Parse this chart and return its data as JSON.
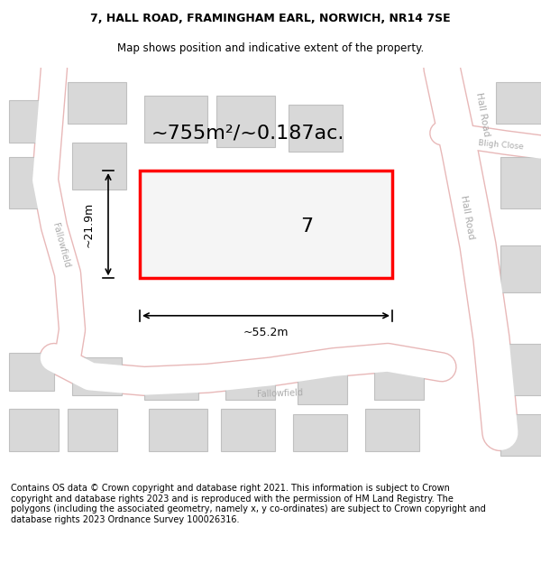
{
  "title_line1": "7, HALL ROAD, FRAMINGHAM EARL, NORWICH, NR14 7SE",
  "title_line2": "Map shows position and indicative extent of the property.",
  "footer_text": "Contains OS data © Crown copyright and database right 2021. This information is subject to Crown copyright and database rights 2023 and is reproduced with the permission of HM Land Registry. The polygons (including the associated geometry, namely x, y co-ordinates) are subject to Crown copyright and database rights 2023 Ordnance Survey 100026316.",
  "area_label": "~755m²/~0.187ac.",
  "width_label": "~55.2m",
  "height_label": "~21.9m",
  "property_number": "7",
  "bg_color": "#f5f5f5",
  "map_bg": "#f0f0f0",
  "road_color": "#ffffff",
  "building_fill": "#d8d8d8",
  "building_edge": "#c0c0c0",
  "boundary_color": "#ff0000",
  "boundary_lw": 2.5,
  "road_outline_color": "#e8b8b8",
  "street_label_color": "#aaaaaa",
  "title_fontsize": 9,
  "subtitle_fontsize": 8.5,
  "footer_fontsize": 7,
  "area_fontsize": 16,
  "dim_fontsize": 9,
  "number_fontsize": 16
}
